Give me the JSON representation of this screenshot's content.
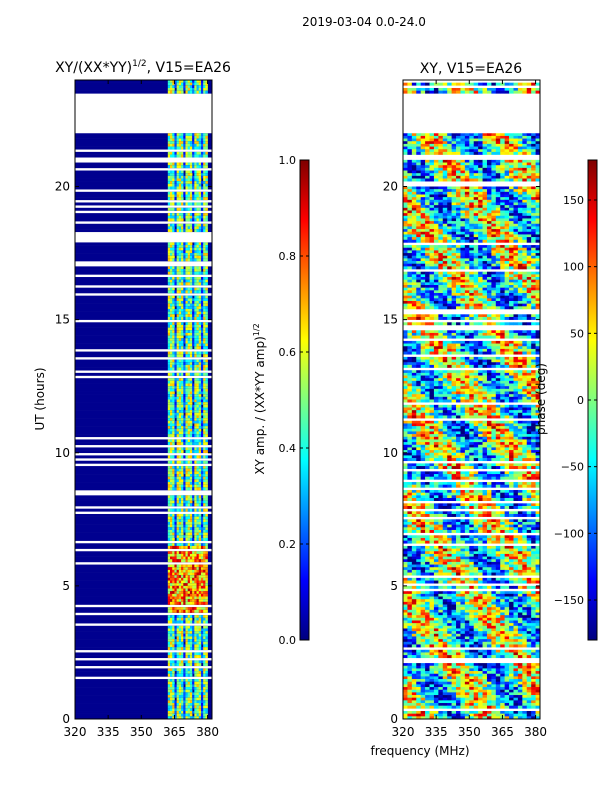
{
  "figure_title": "2019-03-04 0.0-24.0",
  "xlabel_shared": "frequency (MHz)",
  "colors": {
    "jet": [
      "#00007f",
      "#0000ff",
      "#007fff",
      "#00ffff",
      "#7fff7f",
      "#ffff00",
      "#ff7f00",
      "#ff0000",
      "#7f0000"
    ],
    "frame": "#000000"
  },
  "chart_data": [
    {
      "type": "heatmap",
      "id": "left",
      "title_prefix": "XY/(XX*YY)",
      "title_superscript": "1/2",
      "title_suffix": ", V15=EA26",
      "ylabel": "UT (hours)",
      "xlim": [
        320,
        382
      ],
      "ylim": [
        0,
        24
      ],
      "xticks": [
        320,
        335,
        350,
        365,
        380
      ],
      "yticks": [
        0,
        5,
        10,
        15,
        20
      ],
      "colorbar": {
        "label_prefix": "XY amp. / (XX*YY amp)",
        "label_superscript": "1/2",
        "range": [
          0.0,
          1.0
        ],
        "ticks": [
          0.0,
          0.2,
          0.4,
          0.6,
          0.8,
          1.0
        ],
        "tick_labels": [
          "0.0",
          "0.2",
          "0.4",
          "0.6",
          "0.8",
          "1.0"
        ]
      },
      "blank_ut_ranges": [
        [
          22.0,
          23.5
        ]
      ]
    },
    {
      "type": "heatmap",
      "id": "right",
      "title": "XY, V15=EA26",
      "xlim": [
        320,
        382
      ],
      "ylim": [
        0,
        24
      ],
      "xticks": [
        320,
        335,
        350,
        365,
        380
      ],
      "yticks": [
        0,
        5,
        10,
        15,
        20
      ],
      "colorbar": {
        "label": "phase (deg)",
        "range": [
          -180,
          180
        ],
        "ticks": [
          -150,
          -100,
          -50,
          0,
          50,
          100,
          150
        ],
        "tick_labels": [
          "−150",
          "−100",
          "−50",
          "0",
          "50",
          "100",
          "150"
        ]
      },
      "blank_ut_ranges": [
        [
          22.0,
          23.5
        ]
      ]
    }
  ]
}
